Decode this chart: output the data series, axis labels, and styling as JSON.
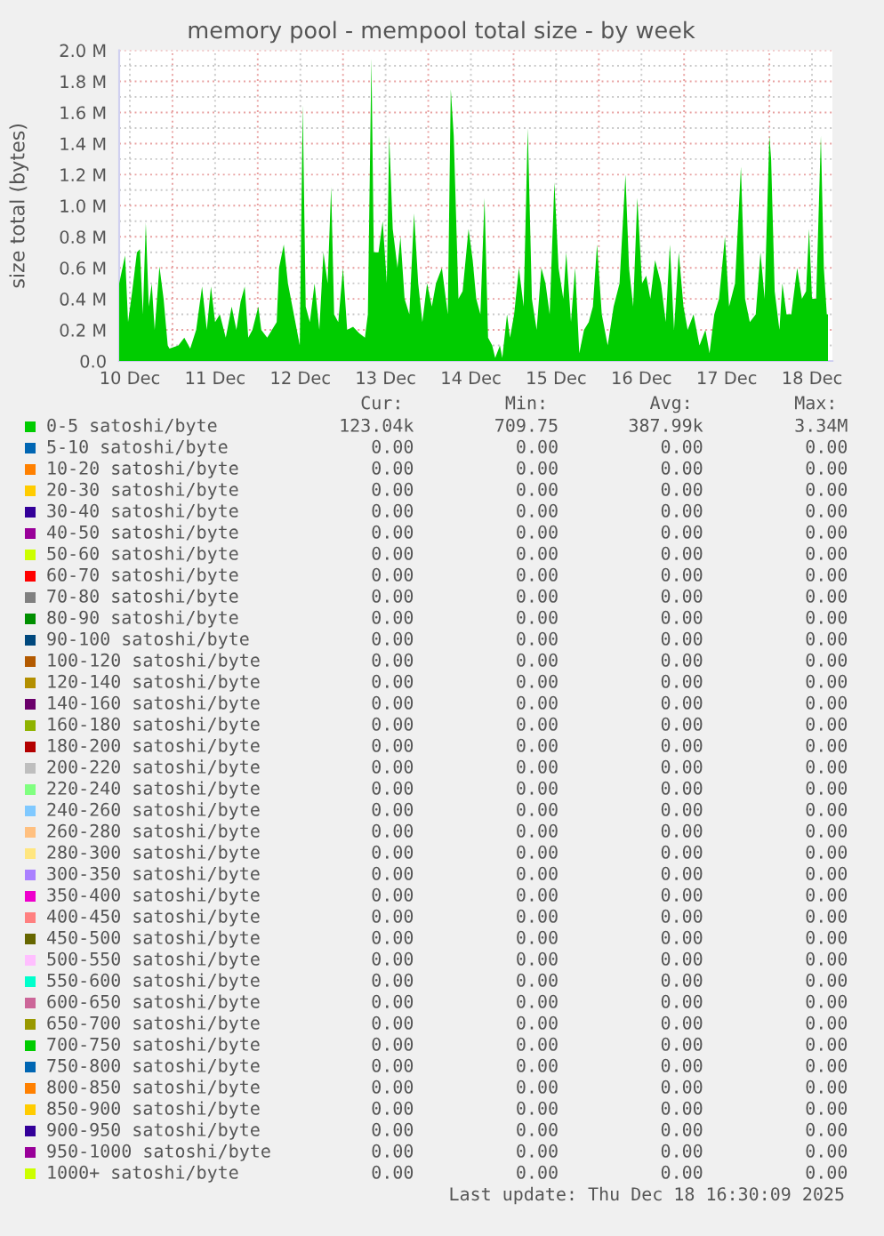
{
  "chart_data": {
    "type": "area",
    "title": "memory pool - mempool total size - by week",
    "ylabel": "size total (bytes)",
    "xlim": [
      "2025-12-10T09:00",
      "2025-12-18T17:45"
    ],
    "xticks": [
      {
        "value": "2025-12-10T12:00",
        "label": "10 Dec"
      },
      {
        "value": "2025-12-11T00:00",
        "label": null
      },
      {
        "value": "2025-12-11T12:00",
        "label": "11 Dec"
      },
      {
        "value": "2025-12-12T00:00",
        "label": null
      },
      {
        "value": "2025-12-12T12:00",
        "label": "12 Dec"
      },
      {
        "value": "2025-12-13T00:00",
        "label": null
      },
      {
        "value": "2025-12-13T12:00",
        "label": "13 Dec"
      },
      {
        "value": "2025-12-14T00:00",
        "label": null
      },
      {
        "value": "2025-12-14T12:00",
        "label": "14 Dec"
      },
      {
        "value": "2025-12-15T00:00",
        "label": null
      },
      {
        "value": "2025-12-15T12:00",
        "label": "15 Dec"
      },
      {
        "value": "2025-12-16T00:00",
        "label": null
      },
      {
        "value": "2025-12-16T12:00",
        "label": "16 Dec"
      },
      {
        "value": "2025-12-17T00:00",
        "label": null
      },
      {
        "value": "2025-12-17T12:00",
        "label": "17 Dec"
      },
      {
        "value": "2025-12-18T00:00",
        "label": null
      },
      {
        "value": "2025-12-18T12:00",
        "label": "18 Dec"
      }
    ],
    "ylim": [
      0,
      2000000
    ],
    "yticks": [
      {
        "value": 0,
        "label": "0.0"
      },
      {
        "value": 100000,
        "label": null
      },
      {
        "value": 200000,
        "label": "0.2 M"
      },
      {
        "value": 300000,
        "label": null
      },
      {
        "value": 400000,
        "label": "0.4 M"
      },
      {
        "value": 500000,
        "label": null
      },
      {
        "value": 600000,
        "label": "0.6 M"
      },
      {
        "value": 700000,
        "label": null
      },
      {
        "value": 800000,
        "label": "0.8 M"
      },
      {
        "value": 900000,
        "label": null
      },
      {
        "value": 1000000,
        "label": "1.0 M"
      },
      {
        "value": 1100000,
        "label": null
      },
      {
        "value": 1200000,
        "label": "1.2 M"
      },
      {
        "value": 1300000,
        "label": null
      },
      {
        "value": 1400000,
        "label": "1.4 M"
      },
      {
        "value": 1500000,
        "label": null
      },
      {
        "value": 1600000,
        "label": "1.6 M"
      },
      {
        "value": 1700000,
        "label": null
      },
      {
        "value": 1800000,
        "label": "1.8 M"
      },
      {
        "value": 1900000,
        "label": null
      },
      {
        "value": 2000000,
        "label": "2.0 M"
      }
    ],
    "grid": true,
    "legend": "bottom",
    "series": [
      {
        "name": "0-5 satoshi/byte",
        "color": "#00cc00",
        "x": [
          "2025-12-10T09:00",
          "2025-12-10T10:40",
          "2025-12-10T11:30",
          "2025-12-10T12:40",
          "2025-12-10T14:00",
          "2025-12-10T14:50",
          "2025-12-10T15:40",
          "2025-12-10T16:30",
          "2025-12-10T17:20",
          "2025-12-10T18:10",
          "2025-12-10T19:00",
          "2025-12-10T20:20",
          "2025-12-10T21:30",
          "2025-12-10T22:40",
          "2025-12-10T23:10",
          "2025-12-11T01:40",
          "2025-12-11T03:20",
          "2025-12-11T05:00",
          "2025-12-11T06:40",
          "2025-12-11T08:20",
          "2025-12-11T09:40",
          "2025-12-11T10:50",
          "2025-12-11T12:00",
          "2025-12-11T13:20",
          "2025-12-11T15:00",
          "2025-12-11T16:40",
          "2025-12-11T18:00",
          "2025-12-11T19:10",
          "2025-12-11T20:20",
          "2025-12-11T21:20",
          "2025-12-11T22:30",
          "2025-12-12T00:10",
          "2025-12-12T01:00",
          "2025-12-12T02:40",
          "2025-12-12T04:00",
          "2025-12-12T05:20",
          "2025-12-12T06:00",
          "2025-12-12T07:20",
          "2025-12-12T08:30",
          "2025-12-12T10:10",
          "2025-12-12T11:50",
          "2025-12-12T12:40",
          "2025-12-12T13:30",
          "2025-12-12T14:40",
          "2025-12-12T16:00",
          "2025-12-12T17:20",
          "2025-12-12T18:30",
          "2025-12-12T19:40",
          "2025-12-12T20:40",
          "2025-12-12T21:30",
          "2025-12-12T22:40",
          "2025-12-13T00:00",
          "2025-12-13T01:10",
          "2025-12-13T02:50",
          "2025-12-13T04:30",
          "2025-12-13T06:10",
          "2025-12-13T07:00",
          "2025-12-13T08:00",
          "2025-12-13T08:40",
          "2025-12-13T10:00",
          "2025-12-13T11:10",
          "2025-12-13T12:20",
          "2025-12-13T13:00",
          "2025-12-13T14:00",
          "2025-12-13T15:20",
          "2025-12-13T16:10",
          "2025-12-13T17:20",
          "2025-12-13T18:40",
          "2025-12-13T20:00",
          "2025-12-13T21:10",
          "2025-12-13T22:20",
          "2025-12-13T23:40",
          "2025-12-14T01:00",
          "2025-12-14T02:10",
          "2025-12-14T03:50",
          "2025-12-14T05:30",
          "2025-12-14T06:20",
          "2025-12-14T07:10",
          "2025-12-14T08:30",
          "2025-12-14T09:40",
          "2025-12-14T11:20",
          "2025-12-14T12:30",
          "2025-12-14T13:30",
          "2025-12-14T14:40",
          "2025-12-14T15:50",
          "2025-12-14T16:50",
          "2025-12-14T18:00",
          "2025-12-14T18:50",
          "2025-12-14T20:10",
          "2025-12-14T20:50",
          "2025-12-14T22:10",
          "2025-12-14T23:00",
          "2025-12-15T00:10",
          "2025-12-15T01:30",
          "2025-12-15T02:50",
          "2025-12-15T04:00",
          "2025-12-15T05:10",
          "2025-12-15T06:30",
          "2025-12-15T07:50",
          "2025-12-15T09:00",
          "2025-12-15T10:10",
          "2025-12-15T11:30",
          "2025-12-15T12:40",
          "2025-12-15T14:00",
          "2025-12-15T14:50",
          "2025-12-15T16:10",
          "2025-12-15T17:20",
          "2025-12-15T18:30",
          "2025-12-15T19:50",
          "2025-12-15T21:10",
          "2025-12-15T22:20",
          "2025-12-15T23:30",
          "2025-12-16T00:50",
          "2025-12-16T02:30",
          "2025-12-16T04:10",
          "2025-12-16T05:50",
          "2025-12-16T07:30",
          "2025-12-16T08:30",
          "2025-12-16T09:40",
          "2025-12-16T10:50",
          "2025-12-16T12:10",
          "2025-12-16T13:20",
          "2025-12-16T14:30",
          "2025-12-16T15:50",
          "2025-12-16T17:30",
          "2025-12-16T18:50",
          "2025-12-16T20:00",
          "2025-12-16T21:10",
          "2025-12-16T22:30",
          "2025-12-16T23:50",
          "2025-12-17T01:00",
          "2025-12-17T02:40",
          "2025-12-17T04:20",
          "2025-12-17T06:00",
          "2025-12-17T07:10",
          "2025-12-17T08:30",
          "2025-12-17T09:50",
          "2025-12-17T11:30",
          "2025-12-17T12:40",
          "2025-12-17T14:20",
          "2025-12-17T16:00",
          "2025-12-17T17:10",
          "2025-12-17T18:30",
          "2025-12-17T20:10",
          "2025-12-17T21:30",
          "2025-12-17T22:40",
          "2025-12-18T00:00",
          "2025-12-18T00:30",
          "2025-12-18T01:30",
          "2025-12-18T02:50",
          "2025-12-18T03:40",
          "2025-12-18T04:50",
          "2025-12-18T06:10",
          "2025-12-18T07:50",
          "2025-12-18T09:10",
          "2025-12-18T10:20",
          "2025-12-18T11:10",
          "2025-12-18T12:00",
          "2025-12-18T13:10",
          "2025-12-18T14:30",
          "2025-12-18T15:20",
          "2025-12-18T16:10",
          "2025-12-18T16:30"
        ],
        "values": [
          500000,
          680000,
          250000,
          450000,
          700000,
          720000,
          300000,
          890000,
          350000,
          500000,
          200000,
          610000,
          400000,
          100000,
          80000,
          100000,
          150000,
          80000,
          200000,
          480000,
          200000,
          480000,
          250000,
          300000,
          150000,
          350000,
          200000,
          380000,
          480000,
          150000,
          200000,
          350000,
          200000,
          150000,
          200000,
          250000,
          600000,
          750000,
          500000,
          300000,
          100000,
          1650000,
          350000,
          250000,
          500000,
          200000,
          700000,
          500000,
          1120000,
          300000,
          250000,
          600000,
          200000,
          220000,
          180000,
          150000,
          300000,
          1950000,
          700000,
          700000,
          900000,
          500000,
          1450000,
          850000,
          600000,
          800000,
          400000,
          300000,
          950000,
          500000,
          250000,
          500000,
          350000,
          500000,
          600000,
          300000,
          1750000,
          1450000,
          400000,
          450000,
          850000,
          650000,
          400000,
          300000,
          1050000,
          150000,
          100000,
          20000,
          100000,
          20000,
          300000,
          150000,
          300000,
          600000,
          350000,
          1500000,
          400000,
          200000,
          600000,
          500000,
          300000,
          1150000,
          600000,
          400000,
          700000,
          250000,
          600000,
          50000,
          200000,
          250000,
          350000,
          750000,
          300000,
          100000,
          350000,
          500000,
          1200000,
          600000,
          350000,
          1050000,
          500000,
          550000,
          400000,
          650000,
          500000,
          250000,
          750000,
          200000,
          700000,
          350000,
          200000,
          300000,
          100000,
          200000,
          50000,
          300000,
          400000,
          800000,
          350000,
          500000,
          1250000,
          400000,
          250000,
          300000,
          700000,
          400000,
          1450000,
          1300000,
          450000,
          200000,
          500000,
          300000,
          300000,
          600000,
          400000,
          450000,
          850000,
          400000,
          400000,
          1450000,
          600000,
          300000,
          300000
        ]
      },
      {
        "name": "5-10 satoshi/byte",
        "color": "#0066b3"
      },
      {
        "name": "10-20 satoshi/byte",
        "color": "#ff8000"
      },
      {
        "name": "20-30 satoshi/byte",
        "color": "#ffcc00"
      },
      {
        "name": "30-40 satoshi/byte",
        "color": "#330099"
      },
      {
        "name": "40-50 satoshi/byte",
        "color": "#990099"
      },
      {
        "name": "50-60 satoshi/byte",
        "color": "#ccff00"
      },
      {
        "name": "60-70 satoshi/byte",
        "color": "#ff0000"
      },
      {
        "name": "70-80 satoshi/byte",
        "color": "#808080"
      },
      {
        "name": "80-90 satoshi/byte",
        "color": "#008f00"
      },
      {
        "name": "90-100 satoshi/byte",
        "color": "#00487d"
      },
      {
        "name": "100-120 satoshi/byte",
        "color": "#b35a00"
      },
      {
        "name": "120-140 satoshi/byte",
        "color": "#b38f00"
      },
      {
        "name": "140-160 satoshi/byte",
        "color": "#6b006b"
      },
      {
        "name": "160-180 satoshi/byte",
        "color": "#8fb300"
      },
      {
        "name": "180-200 satoshi/byte",
        "color": "#b30000"
      },
      {
        "name": "200-220 satoshi/byte",
        "color": "#bebebe"
      },
      {
        "name": "220-240 satoshi/byte",
        "color": "#80ff80"
      },
      {
        "name": "240-260 satoshi/byte",
        "color": "#80c9ff"
      },
      {
        "name": "260-280 satoshi/byte",
        "color": "#ffc080"
      },
      {
        "name": "280-300 satoshi/byte",
        "color": "#ffe680"
      },
      {
        "name": "300-350 satoshi/byte",
        "color": "#aa80ff"
      },
      {
        "name": "350-400 satoshi/byte",
        "color": "#ee00cc"
      },
      {
        "name": "400-450 satoshi/byte",
        "color": "#ff8080"
      },
      {
        "name": "450-500 satoshi/byte",
        "color": "#666600"
      },
      {
        "name": "500-550 satoshi/byte",
        "color": "#ffbfff"
      },
      {
        "name": "550-600 satoshi/byte",
        "color": "#00ffcc"
      },
      {
        "name": "600-650 satoshi/byte",
        "color": "#cc6699"
      },
      {
        "name": "650-700 satoshi/byte",
        "color": "#999900"
      },
      {
        "name": "700-750 satoshi/byte",
        "color": "#00cc00"
      },
      {
        "name": "750-800 satoshi/byte",
        "color": "#0066b3"
      },
      {
        "name": "800-850 satoshi/byte",
        "color": "#ff8000"
      },
      {
        "name": "850-900 satoshi/byte",
        "color": "#ffcc00"
      },
      {
        "name": "900-950 satoshi/byte",
        "color": "#330099"
      },
      {
        "name": "950-1000 satoshi/byte",
        "color": "#990099"
      },
      {
        "name": "1000+ satoshi/byte",
        "color": "#ccff00"
      }
    ],
    "annotations": [
      "Cur:",
      "Min:",
      "Avg:",
      "Max:",
      "123.04k",
      "709.75",
      "387.99k",
      "3.34M",
      "0.00",
      "0.00",
      "0.00",
      "0.00",
      "0.00",
      "0.00",
      "0.00",
      "0.00",
      "0.00",
      "0.00",
      "0.00",
      "0.00",
      "0.00",
      "0.00",
      "0.00",
      "0.00",
      "0.00",
      "0.00",
      "0.00",
      "0.00",
      "0.00",
      "0.00",
      "0.00",
      "0.00",
      "0.00",
      "0.00",
      "0.00",
      "0.00",
      "0.00",
      "0.00",
      "0.00",
      "0.00",
      "0.00",
      "0.00",
      "0.00",
      "0.00",
      "0.00",
      "0.00",
      "0.00",
      "0.00",
      "0.00",
      "0.00",
      "0.00",
      "0.00",
      "0.00",
      "0.00",
      "0.00",
      "0.00",
      "0.00",
      "0.00",
      "0.00",
      "0.00",
      "0.00",
      "0.00",
      "0.00",
      "0.00",
      "0.00",
      "0.00",
      "0.00",
      "0.00",
      "0.00",
      "0.00",
      "0.00",
      "0.00",
      "0.00",
      "0.00",
      "0.00",
      "0.00",
      "0.00",
      "0.00",
      "0.00",
      "0.00",
      "0.00",
      "0.00",
      "0.00",
      "0.00",
      "0.00",
      "0.00",
      "0.00",
      "0.00",
      "0.00",
      "0.00",
      "0.00",
      "0.00",
      "0.00",
      "0.00",
      "0.00",
      "0.00",
      "0.00",
      "0.00",
      "0.00",
      "0.00",
      "0.00",
      "0.00",
      "0.00",
      "0.00",
      "0.00",
      "0.00",
      "0.00",
      "0.00",
      "0.00",
      "0.00",
      "0.00",
      "0.00",
      "0.00",
      "0.00",
      "0.00",
      "0.00",
      "0.00",
      "0.00",
      "0.00",
      "0.00",
      "0.00",
      "0.00",
      "0.00",
      "0.00",
      "0.00",
      "0.00",
      "0.00",
      "0.00",
      "0.00",
      "0.00",
      "0.00",
      "0.00",
      "0.00",
      "0.00",
      "0.00",
      "0.00",
      "0.00",
      "0.00",
      "0.00",
      "0.00",
      "0.00",
      "0.00",
      "0.00",
      "0.00",
      "0.00",
      "0.00",
      "0.00",
      "0.00",
      "Last update: Thu Dec 18 16:30:09 2025"
    ]
  }
}
